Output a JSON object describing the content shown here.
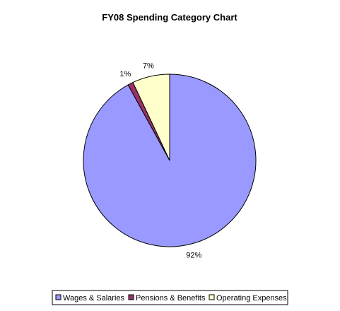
{
  "chart_data": {
    "type": "pie",
    "title": "FY08 Spending Category Chart",
    "categories": [
      "Wages & Salaries",
      "Pensions & Benefits",
      "Operating Expenses"
    ],
    "values": [
      92,
      1,
      7
    ],
    "labels": [
      "92%",
      "1%",
      "7%"
    ],
    "colors": [
      "#9999FF",
      "#993366",
      "#FFFFCC"
    ],
    "legend": "bottom"
  }
}
